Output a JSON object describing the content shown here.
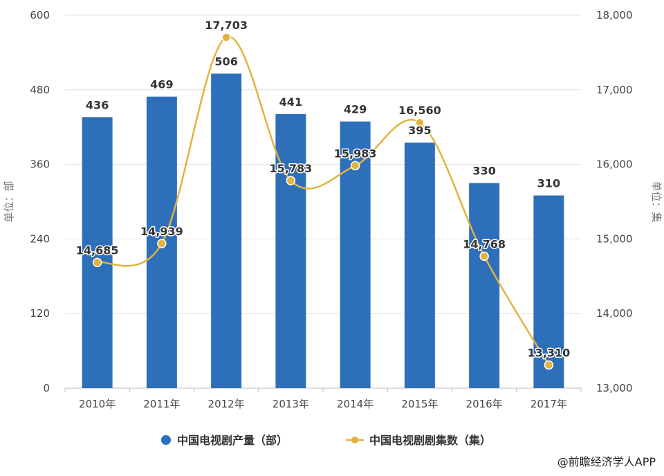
{
  "chart_data": {
    "type": "bar",
    "categories": [
      "2010年",
      "2011年",
      "2012年",
      "2013年",
      "2014年",
      "2015年",
      "2016年",
      "2017年"
    ],
    "series": [
      {
        "name": "中国电视剧产量（部）",
        "type": "bar",
        "axis": "left",
        "color": "#2e6fba",
        "values": [
          436,
          469,
          506,
          441,
          429,
          395,
          330,
          310
        ],
        "labels": [
          "436",
          "469",
          "506",
          "441",
          "429",
          "395",
          "330",
          "310"
        ]
      },
      {
        "name": "中国电视剧剧集数（集）",
        "type": "line",
        "axis": "right",
        "color": "#e2b33d",
        "values": [
          14685,
          14939,
          17703,
          15783,
          15983,
          16560,
          14768,
          13310
        ],
        "labels": [
          "14,685",
          "14,939",
          "17,703",
          "15,783",
          "15,983",
          "16,560",
          "14,768",
          "13,310"
        ]
      }
    ],
    "y_left": {
      "label": "单位：部",
      "ylim": [
        0,
        600
      ],
      "ticks": [
        "0",
        "120",
        "240",
        "360",
        "480",
        "600"
      ]
    },
    "y_right": {
      "label": "单位：集",
      "ylim": [
        13000,
        18000
      ],
      "ticks": [
        "13,000",
        "14,000",
        "15,000",
        "16,000",
        "17,000",
        "18,000"
      ]
    },
    "legend": "bottom",
    "grid": true
  },
  "source": "@前瞻经济学人APP"
}
